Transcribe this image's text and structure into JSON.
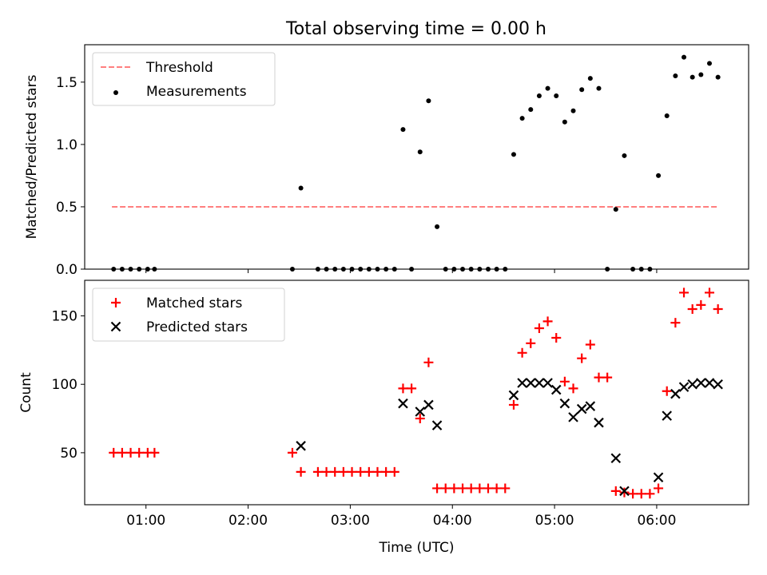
{
  "title": "Total observing time = 0.00 h",
  "chart_data": [
    {
      "type": "scatter",
      "ylabel": "Matched/Predicted stars",
      "xlabel": "",
      "xlim": [
        "00:24",
        "06:54"
      ],
      "ylim": [
        0,
        1.8
      ],
      "y_ticks": [
        0.0,
        0.5,
        1.0,
        1.5
      ],
      "y_tick_labels": [
        "0.0",
        "0.5",
        "1.0",
        "1.5"
      ],
      "x_ticks": [
        "01:00",
        "02:00",
        "03:00",
        "04:00",
        "05:00",
        "06:00"
      ],
      "grid": false,
      "legend_position": "top-left",
      "series": [
        {
          "name": "Threshold",
          "kind": "line",
          "style": "dashed",
          "color": "#ff7f7f",
          "points": [
            [
              "00:40",
              0.5
            ],
            [
              "06:36",
              0.5
            ]
          ]
        },
        {
          "name": "Measurements",
          "kind": "scatter",
          "marker": "dot",
          "color": "#000000",
          "points": [
            [
              "00:41",
              0
            ],
            [
              "00:46",
              0
            ],
            [
              "00:51",
              0
            ],
            [
              "00:56",
              0
            ],
            [
              "01:01",
              0
            ],
            [
              "01:05",
              0
            ],
            [
              "02:26",
              0
            ],
            [
              "02:31",
              0.65
            ],
            [
              "02:41",
              0
            ],
            [
              "02:46",
              0
            ],
            [
              "02:51",
              0
            ],
            [
              "02:56",
              0
            ],
            [
              "03:01",
              0
            ],
            [
              "03:06",
              0
            ],
            [
              "03:11",
              0
            ],
            [
              "03:16",
              0
            ],
            [
              "03:21",
              0
            ],
            [
              "03:26",
              0
            ],
            [
              "03:31",
              1.12
            ],
            [
              "03:36",
              0
            ],
            [
              "03:41",
              0.94
            ],
            [
              "03:46",
              1.35
            ],
            [
              "03:51",
              0.34
            ],
            [
              "03:56",
              0
            ],
            [
              "04:01",
              0
            ],
            [
              "04:06",
              0
            ],
            [
              "04:11",
              0
            ],
            [
              "04:16",
              0
            ],
            [
              "04:21",
              0
            ],
            [
              "04:26",
              0
            ],
            [
              "04:31",
              0
            ],
            [
              "04:36",
              0.92
            ],
            [
              "04:41",
              1.21
            ],
            [
              "04:46",
              1.28
            ],
            [
              "04:51",
              1.39
            ],
            [
              "04:56",
              1.45
            ],
            [
              "05:01",
              1.39
            ],
            [
              "05:06",
              1.18
            ],
            [
              "05:11",
              1.27
            ],
            [
              "05:16",
              1.44
            ],
            [
              "05:21",
              1.53
            ],
            [
              "05:26",
              1.45
            ],
            [
              "05:31",
              0
            ],
            [
              "05:36",
              0.48
            ],
            [
              "05:41",
              0.91
            ],
            [
              "05:46",
              0
            ],
            [
              "05:51",
              0
            ],
            [
              "05:56",
              0
            ],
            [
              "06:01",
              0.75
            ],
            [
              "06:06",
              1.23
            ],
            [
              "06:11",
              1.55
            ],
            [
              "06:16",
              1.7
            ],
            [
              "06:21",
              1.54
            ],
            [
              "06:26",
              1.56
            ],
            [
              "06:31",
              1.65
            ],
            [
              "06:36",
              1.54
            ]
          ]
        }
      ]
    },
    {
      "type": "scatter",
      "ylabel": "Count",
      "xlabel": "Time (UTC)",
      "xlim": [
        "00:24",
        "06:54"
      ],
      "ylim": [
        12,
        176
      ],
      "y_ticks": [
        50,
        100,
        150
      ],
      "y_tick_labels": [
        "50",
        "100",
        "150"
      ],
      "x_ticks": [
        "01:00",
        "02:00",
        "03:00",
        "04:00",
        "05:00",
        "06:00"
      ],
      "grid": false,
      "legend_position": "top-left",
      "series": [
        {
          "name": "Matched stars",
          "kind": "scatter",
          "marker": "plus",
          "color": "#ff0000",
          "points": [
            [
              "00:41",
              50
            ],
            [
              "00:46",
              50
            ],
            [
              "00:51",
              50
            ],
            [
              "00:56",
              50
            ],
            [
              "01:01",
              50
            ],
            [
              "01:05",
              50
            ],
            [
              "02:26",
              50
            ],
            [
              "02:31",
              36
            ],
            [
              "02:41",
              36
            ],
            [
              "02:46",
              36
            ],
            [
              "02:51",
              36
            ],
            [
              "02:56",
              36
            ],
            [
              "03:01",
              36
            ],
            [
              "03:06",
              36
            ],
            [
              "03:11",
              36
            ],
            [
              "03:16",
              36
            ],
            [
              "03:21",
              36
            ],
            [
              "03:26",
              36
            ],
            [
              "03:31",
              97
            ],
            [
              "03:36",
              97
            ],
            [
              "03:41",
              75
            ],
            [
              "03:46",
              116
            ],
            [
              "03:51",
              24
            ],
            [
              "03:56",
              24
            ],
            [
              "04:01",
              24
            ],
            [
              "04:06",
              24
            ],
            [
              "04:11",
              24
            ],
            [
              "04:16",
              24
            ],
            [
              "04:21",
              24
            ],
            [
              "04:26",
              24
            ],
            [
              "04:31",
              24
            ],
            [
              "04:36",
              85
            ],
            [
              "04:41",
              123
            ],
            [
              "04:46",
              130
            ],
            [
              "04:51",
              141
            ],
            [
              "04:56",
              146
            ],
            [
              "05:01",
              134
            ],
            [
              "05:06",
              102
            ],
            [
              "05:11",
              97
            ],
            [
              "05:16",
              119
            ],
            [
              "05:21",
              129
            ],
            [
              "05:26",
              105
            ],
            [
              "05:31",
              105
            ],
            [
              "05:36",
              22
            ],
            [
              "05:41",
              21
            ],
            [
              "05:46",
              20
            ],
            [
              "05:51",
              20
            ],
            [
              "05:56",
              20
            ],
            [
              "06:01",
              24
            ],
            [
              "06:06",
              95
            ],
            [
              "06:11",
              145
            ],
            [
              "06:16",
              167
            ],
            [
              "06:21",
              155
            ],
            [
              "06:26",
              158
            ],
            [
              "06:31",
              167
            ],
            [
              "06:36",
              155
            ]
          ]
        },
        {
          "name": "Predicted stars",
          "kind": "scatter",
          "marker": "cross",
          "color": "#000000",
          "points": [
            [
              "02:31",
              55
            ],
            [
              "03:31",
              86
            ],
            [
              "03:41",
              80
            ],
            [
              "03:46",
              85
            ],
            [
              "03:51",
              70
            ],
            [
              "04:36",
              92
            ],
            [
              "04:41",
              101
            ],
            [
              "04:46",
              101
            ],
            [
              "04:51",
              101
            ],
            [
              "04:56",
              101
            ],
            [
              "05:01",
              96
            ],
            [
              "05:06",
              86
            ],
            [
              "05:11",
              76
            ],
            [
              "05:16",
              82
            ],
            [
              "05:21",
              84
            ],
            [
              "05:26",
              72
            ],
            [
              "05:36",
              46
            ],
            [
              "05:41",
              22
            ],
            [
              "06:01",
              32
            ],
            [
              "06:06",
              77
            ],
            [
              "06:11",
              93
            ],
            [
              "06:16",
              98
            ],
            [
              "06:21",
              100
            ],
            [
              "06:26",
              101
            ],
            [
              "06:31",
              101
            ],
            [
              "06:36",
              100
            ]
          ]
        }
      ]
    }
  ]
}
